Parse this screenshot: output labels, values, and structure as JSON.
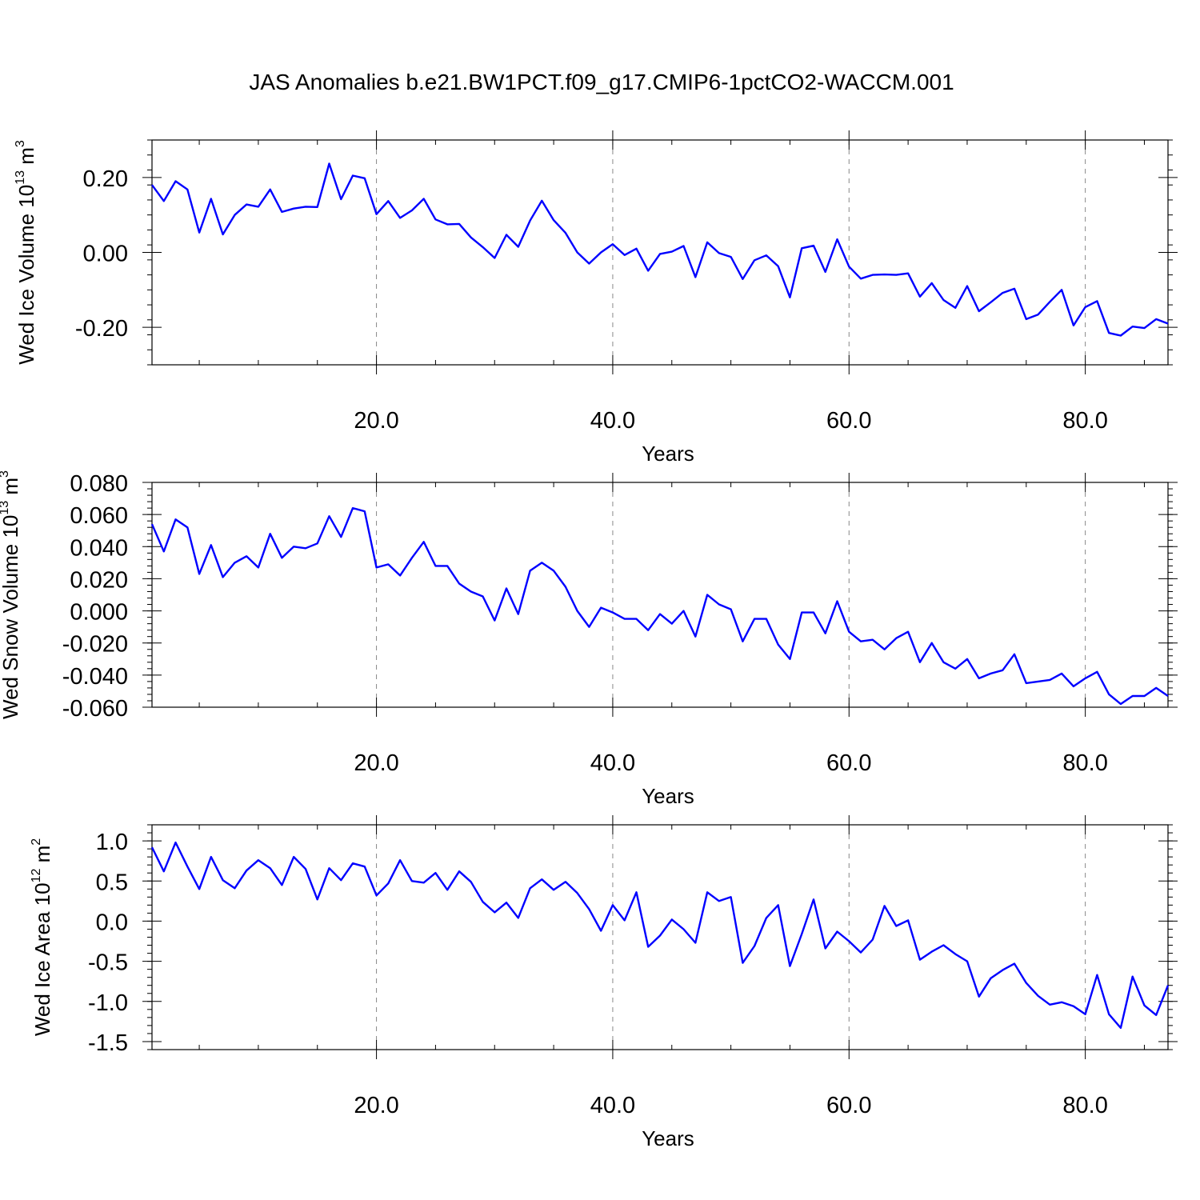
{
  "title": "JAS Anomalies b.e21.BW1PCT.f09_g17.CMIP6-1pctCO2-WACCM.001",
  "colors": {
    "series": "#0000ff",
    "axis": "#000000",
    "grid": "#888888"
  },
  "chart_data": [
    {
      "type": "line",
      "xlabel": "Years",
      "ylabel": "Wed Ice Volume 10",
      "ylabel_exp": "13",
      "ylabel_unit": " m",
      "ylabel_unit_exp": "3",
      "xlim": [
        1,
        87
      ],
      "ylim": [
        -0.3,
        0.3
      ],
      "xticks": [
        20,
        40,
        60,
        80
      ],
      "xtick_labels": [
        "20.0",
        "40.0",
        "60.0",
        "80.0"
      ],
      "yticks": [
        0.2,
        0.0,
        -0.2
      ],
      "ytick_labels": [
        "0.20",
        "0.00",
        "-0.20"
      ],
      "grid": "dashed vertical at major x ticks",
      "series": [
        {
          "values": [
            0.18,
            0.137,
            0.19,
            0.168,
            0.053,
            0.143,
            0.048,
            0.1,
            0.128,
            0.122,
            0.168,
            0.108,
            0.117,
            0.122,
            0.121,
            0.237,
            0.142,
            0.205,
            0.198,
            0.102,
            0.137,
            0.092,
            0.112,
            0.143,
            0.088,
            0.075,
            0.076,
            0.04,
            0.014,
            -0.015,
            0.047,
            0.015,
            0.085,
            0.138,
            0.086,
            0.052,
            0.0,
            -0.03,
            0.0,
            0.022,
            -0.007,
            0.01,
            -0.049,
            -0.004,
            0.002,
            0.017,
            -0.066,
            0.027,
            -0.002,
            -0.012,
            -0.071,
            -0.021,
            -0.008,
            -0.037,
            -0.12,
            0.011,
            0.018,
            -0.052,
            0.035,
            -0.038,
            -0.07,
            -0.06,
            -0.059,
            -0.06,
            -0.056,
            -0.118,
            -0.082,
            -0.127,
            -0.148,
            -0.09,
            -0.157,
            -0.133,
            -0.108,
            -0.097,
            -0.178,
            -0.166,
            -0.132,
            -0.1,
            -0.195,
            -0.146,
            -0.13,
            -0.215,
            -0.222,
            -0.198,
            -0.202,
            -0.178,
            -0.19
          ]
        }
      ]
    },
    {
      "type": "line",
      "xlabel": "Years",
      "ylabel": "Wed Snow Volume 10",
      "ylabel_exp": "13",
      "ylabel_unit": " m",
      "ylabel_unit_exp": "3",
      "xlim": [
        1,
        87
      ],
      "ylim": [
        -0.06,
        0.08
      ],
      "xticks": [
        20,
        40,
        60,
        80
      ],
      "xtick_labels": [
        "20.0",
        "40.0",
        "60.0",
        "80.0"
      ],
      "yticks": [
        0.08,
        0.06,
        0.04,
        0.02,
        0.0,
        -0.02,
        -0.04,
        -0.06
      ],
      "ytick_labels": [
        "0.080",
        "0.060",
        "0.040",
        "0.020",
        "0.000",
        "-0.020",
        "-0.040",
        "-0.060"
      ],
      "grid": "dashed vertical at major x ticks",
      "series": [
        {
          "values": [
            0.054,
            0.037,
            0.057,
            0.052,
            0.023,
            0.041,
            0.021,
            0.03,
            0.034,
            0.027,
            0.048,
            0.033,
            0.04,
            0.039,
            0.042,
            0.059,
            0.046,
            0.064,
            0.062,
            0.027,
            0.029,
            0.022,
            0.033,
            0.043,
            0.028,
            0.028,
            0.017,
            0.012,
            0.009,
            -0.006,
            0.014,
            -0.002,
            0.025,
            0.03,
            0.025,
            0.015,
            0.0,
            -0.01,
            0.002,
            -0.001,
            -0.005,
            -0.005,
            -0.012,
            -0.002,
            -0.008,
            0.0,
            -0.016,
            0.01,
            0.004,
            0.001,
            -0.019,
            -0.005,
            -0.005,
            -0.021,
            -0.03,
            -0.001,
            -0.001,
            -0.014,
            0.006,
            -0.013,
            -0.019,
            -0.018,
            -0.024,
            -0.017,
            -0.013,
            -0.032,
            -0.02,
            -0.032,
            -0.036,
            -0.03,
            -0.042,
            -0.039,
            -0.037,
            -0.027,
            -0.045,
            -0.044,
            -0.043,
            -0.039,
            -0.047,
            -0.042,
            -0.038,
            -0.052,
            -0.058,
            -0.053,
            -0.053,
            -0.048,
            -0.053
          ]
        }
      ]
    },
    {
      "type": "line",
      "xlabel": "Years",
      "ylabel": "Wed Ice Area 10",
      "ylabel_exp": "12",
      "ylabel_unit": " m",
      "ylabel_unit_exp": "2",
      "xlim": [
        1,
        87
      ],
      "ylim": [
        -1.6,
        1.2
      ],
      "xticks": [
        20,
        40,
        60,
        80
      ],
      "xtick_labels": [
        "20.0",
        "40.0",
        "60.0",
        "80.0"
      ],
      "yticks": [
        1.0,
        0.5,
        0.0,
        -0.5,
        -1.0,
        -1.5
      ],
      "ytick_labels": [
        "1.0",
        "0.5",
        "0.0",
        "-0.5",
        "-1.0",
        "-1.5"
      ],
      "grid": "dashed vertical at major x ticks",
      "series": [
        {
          "values": [
            0.92,
            0.62,
            0.98,
            0.68,
            0.4,
            0.8,
            0.51,
            0.41,
            0.63,
            0.76,
            0.66,
            0.45,
            0.8,
            0.65,
            0.27,
            0.66,
            0.51,
            0.72,
            0.68,
            0.32,
            0.47,
            0.76,
            0.5,
            0.48,
            0.6,
            0.39,
            0.62,
            0.49,
            0.24,
            0.11,
            0.23,
            0.04,
            0.41,
            0.52,
            0.39,
            0.49,
            0.35,
            0.15,
            -0.12,
            0.2,
            0.01,
            0.36,
            -0.32,
            -0.18,
            0.02,
            -0.1,
            -0.27,
            0.36,
            0.25,
            0.3,
            -0.52,
            -0.31,
            0.04,
            0.2,
            -0.56,
            -0.16,
            0.27,
            -0.34,
            -0.13,
            -0.25,
            -0.39,
            -0.23,
            0.19,
            -0.06,
            0.01,
            -0.48,
            -0.38,
            -0.3,
            -0.41,
            -0.5,
            -0.94,
            -0.71,
            -0.61,
            -0.53,
            -0.77,
            -0.93,
            -1.04,
            -1.01,
            -1.06,
            -1.16,
            -0.67,
            -1.16,
            -1.33,
            -0.69,
            -1.05,
            -1.17,
            -0.8
          ]
        }
      ]
    }
  ]
}
